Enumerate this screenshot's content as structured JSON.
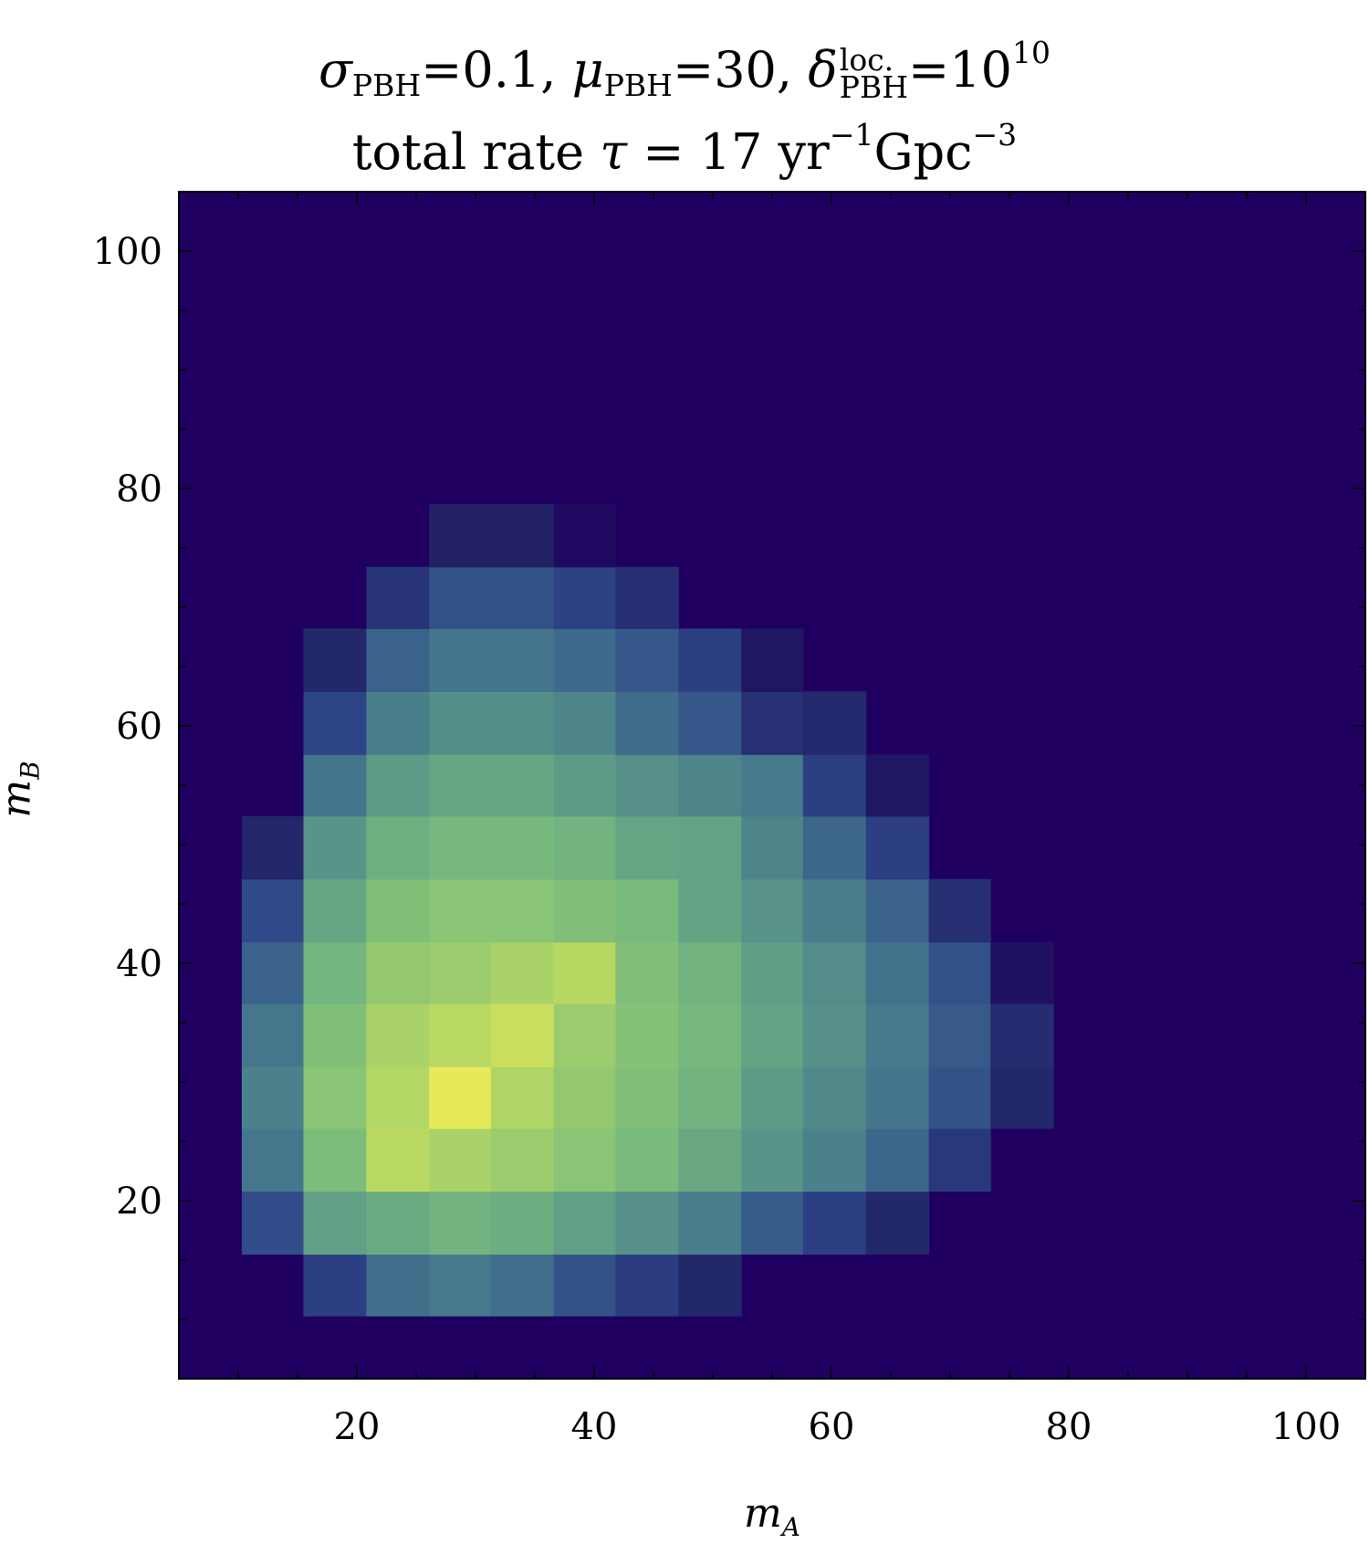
{
  "title": {
    "line1": {
      "sigma_sym": "σ",
      "sigma_sub": "PBH",
      "sigma_val": "=0.1, ",
      "mu_sym": "μ",
      "mu_sub": "PBH",
      "mu_val": "=30, ",
      "delta_sym": "δ",
      "delta_sup": "loc.",
      "delta_sub": "PBH",
      "delta_val": "=10",
      "delta_exp": "10"
    },
    "line2": {
      "prefix": "total rate ",
      "tau_sym": "τ",
      "mid": " = 17 yr",
      "exp1": "−1",
      "unit": "Gpc",
      "exp2": "−3"
    }
  },
  "x_label": {
    "sym": "m",
    "sub": "A"
  },
  "y_label": {
    "sym": "m",
    "sub": "B"
  },
  "chart_data": {
    "type": "heatmap",
    "title": "σPBH=0.1, μPBH=30, δlocPBH=10^10 / total rate τ = 17 yr^-1 Gpc^-3",
    "xlabel": "m_A",
    "ylabel": "m_B",
    "xlim": [
      5,
      105
    ],
    "ylim": [
      5,
      105
    ],
    "x_ticks": [
      "20",
      "40",
      "60",
      "80",
      "100"
    ],
    "y_ticks": [
      "20",
      "40",
      "60",
      "80",
      "100"
    ],
    "bin_edges_x": [
      5.0,
      10.3,
      15.5,
      20.8,
      26.1,
      31.3,
      36.6,
      41.8,
      47.1,
      52.4,
      57.6,
      62.9,
      68.2,
      73.4,
      78.7,
      84.0,
      89.2,
      94.5,
      99.7,
      105.0
    ],
    "bin_edges_y": [
      5.0,
      10.3,
      15.5,
      20.8,
      26.1,
      31.3,
      36.6,
      41.8,
      47.1,
      52.4,
      57.6,
      62.9,
      68.2,
      73.4,
      78.7,
      84.0,
      89.2,
      94.5,
      99.7,
      105.0
    ],
    "colormap": "viridis",
    "background_color": "#1f0060",
    "values_note": "relative intensity 0 (dark purple) to 1 (yellow); rows listed from lowest m_B bin upward, columns from lowest m_A bin",
    "values": [
      [
        0,
        0,
        0,
        0,
        0,
        0,
        0,
        0,
        0,
        0,
        0,
        0,
        0,
        0,
        0,
        0,
        0,
        0,
        0
      ],
      [
        0,
        0,
        0.23,
        0.41,
        0.45,
        0.41,
        0.3,
        0.22,
        0.13,
        0,
        0,
        0,
        0,
        0,
        0,
        0,
        0,
        0,
        0
      ],
      [
        0,
        0.28,
        0.62,
        0.66,
        0.69,
        0.67,
        0.62,
        0.55,
        0.47,
        0.34,
        0.23,
        0.13,
        0,
        0,
        0,
        0,
        0,
        0,
        0
      ],
      [
        0,
        0.44,
        0.73,
        0.87,
        0.83,
        0.8,
        0.76,
        0.72,
        0.65,
        0.57,
        0.48,
        0.38,
        0.2,
        0,
        0,
        0,
        0,
        0,
        0
      ],
      [
        0,
        0.48,
        0.76,
        0.85,
        1.0,
        0.84,
        0.78,
        0.74,
        0.69,
        0.6,
        0.52,
        0.43,
        0.3,
        0.13,
        0,
        0,
        0,
        0,
        0
      ],
      [
        0,
        0.44,
        0.74,
        0.83,
        0.87,
        0.92,
        0.8,
        0.75,
        0.71,
        0.63,
        0.55,
        0.45,
        0.33,
        0.15,
        0,
        0,
        0,
        0,
        0
      ],
      [
        0,
        0.36,
        0.7,
        0.78,
        0.8,
        0.83,
        0.86,
        0.74,
        0.69,
        0.61,
        0.53,
        0.42,
        0.3,
        0.05,
        0,
        0,
        0,
        0,
        0
      ],
      [
        0,
        0.27,
        0.64,
        0.74,
        0.76,
        0.76,
        0.74,
        0.72,
        0.63,
        0.56,
        0.47,
        0.36,
        0.16,
        0,
        0,
        0,
        0,
        0,
        0
      ],
      [
        0,
        0.12,
        0.57,
        0.68,
        0.71,
        0.71,
        0.69,
        0.64,
        0.63,
        0.5,
        0.38,
        0.23,
        0,
        0,
        0,
        0,
        0,
        0,
        0
      ],
      [
        0,
        0,
        0.43,
        0.6,
        0.64,
        0.64,
        0.6,
        0.55,
        0.5,
        0.45,
        0.23,
        0.07,
        0,
        0,
        0,
        0,
        0,
        0,
        0
      ],
      [
        0,
        0,
        0.25,
        0.47,
        0.54,
        0.54,
        0.5,
        0.4,
        0.32,
        0.17,
        0.14,
        0,
        0,
        0,
        0,
        0,
        0,
        0,
        0
      ],
      [
        0,
        0,
        0.13,
        0.36,
        0.43,
        0.43,
        0.39,
        0.32,
        0.23,
        0.07,
        0,
        0,
        0,
        0,
        0,
        0,
        0,
        0,
        0
      ],
      [
        0,
        0,
        0,
        0.18,
        0.3,
        0.3,
        0.24,
        0.16,
        0,
        0,
        0,
        0,
        0,
        0,
        0,
        0,
        0,
        0,
        0
      ],
      [
        0,
        0,
        0,
        0,
        0.1,
        0.1,
        0.03,
        0,
        0,
        0,
        0,
        0,
        0,
        0,
        0,
        0,
        0,
        0,
        0
      ],
      [
        0,
        0,
        0,
        0,
        0,
        0,
        0,
        0,
        0,
        0,
        0,
        0,
        0,
        0,
        0,
        0,
        0,
        0,
        0
      ],
      [
        0,
        0,
        0,
        0,
        0,
        0,
        0,
        0,
        0,
        0,
        0,
        0,
        0,
        0,
        0,
        0,
        0,
        0,
        0
      ],
      [
        0,
        0,
        0,
        0,
        0,
        0,
        0,
        0,
        0,
        0,
        0,
        0,
        0,
        0,
        0,
        0,
        0,
        0,
        0
      ],
      [
        0,
        0,
        0,
        0,
        0,
        0,
        0,
        0,
        0,
        0,
        0,
        0,
        0,
        0,
        0,
        0,
        0,
        0,
        0
      ],
      [
        0,
        0,
        0,
        0,
        0,
        0,
        0,
        0,
        0,
        0,
        0,
        0,
        0,
        0,
        0,
        0,
        0,
        0,
        0
      ]
    ]
  }
}
